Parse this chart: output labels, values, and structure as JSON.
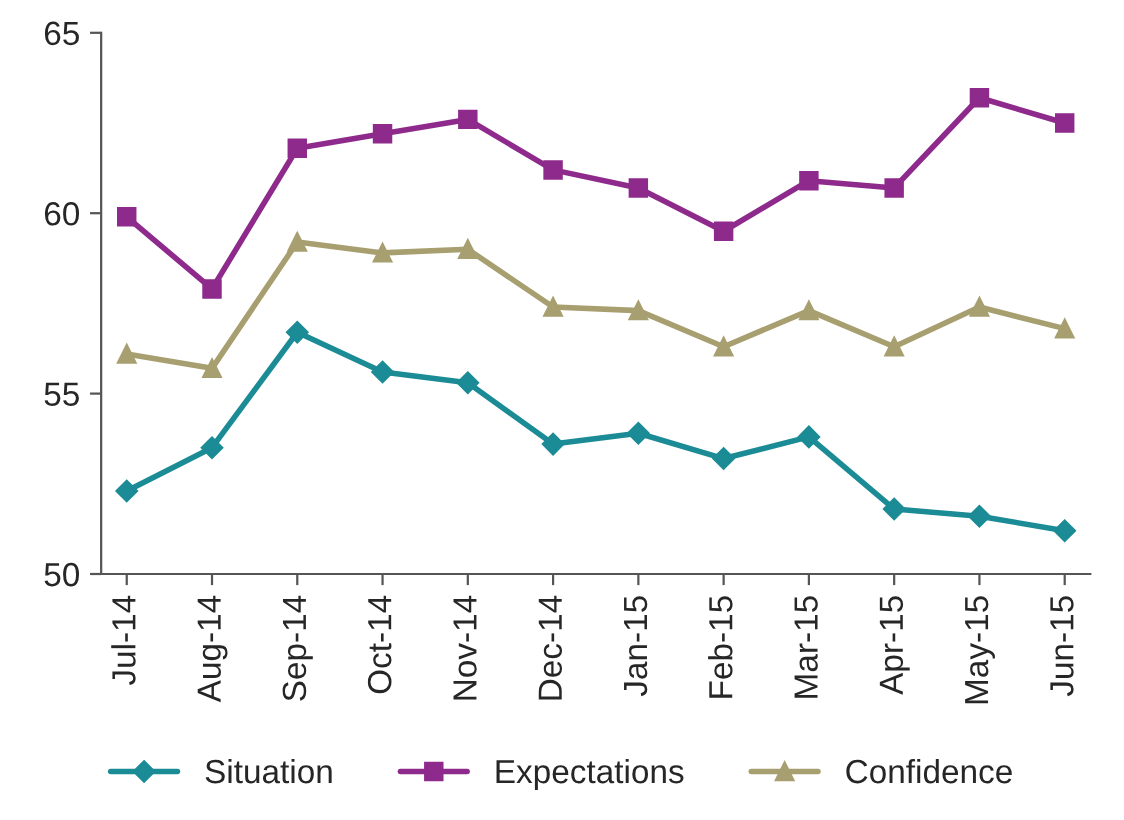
{
  "chart_data": {
    "type": "line",
    "categories": [
      "Jul-14",
      "Aug-14",
      "Sep-14",
      "Oct-14",
      "Nov-14",
      "Dec-14",
      "Jan-15",
      "Feb-15",
      "Mar-15",
      "Apr-15",
      "May-15",
      "Jun-15"
    ],
    "series": [
      {
        "name": "Situation",
        "color": "#1b8b96",
        "marker": "diamond",
        "values": [
          52.3,
          53.5,
          56.7,
          55.6,
          55.3,
          53.6,
          53.9,
          53.2,
          53.8,
          51.8,
          51.6,
          51.2
        ]
      },
      {
        "name": "Expectations",
        "color": "#8e2a8c",
        "marker": "square",
        "values": [
          59.9,
          57.9,
          61.8,
          62.2,
          62.6,
          61.2,
          60.7,
          59.5,
          60.9,
          60.7,
          63.2,
          62.5
        ]
      },
      {
        "name": "Confidence",
        "color": "#a89f70",
        "marker": "triangle",
        "values": [
          56.1,
          55.7,
          59.2,
          58.9,
          59.0,
          57.4,
          57.3,
          56.3,
          57.3,
          56.3,
          57.4,
          56.8
        ]
      }
    ],
    "ylim": [
      50,
      65
    ],
    "yticks": [
      50,
      55,
      60,
      65
    ],
    "grid": false,
    "legend": "bottom",
    "line_style": "solid"
  }
}
